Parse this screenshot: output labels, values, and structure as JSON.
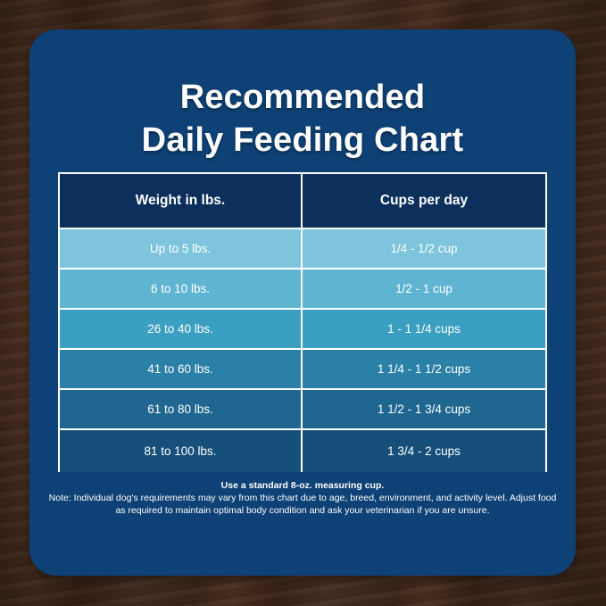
{
  "title": {
    "line1": "Recommended",
    "line2": "Daily Feeding Chart"
  },
  "table": {
    "headers": [
      "Weight in lbs.",
      "Cups per day"
    ],
    "rows": [
      {
        "weight": "Up to 5 lbs.",
        "cups": "1/4 - 1/2 cup"
      },
      {
        "weight": "6 to 10 lbs.",
        "cups": "1/2 - 1 cup"
      },
      {
        "weight": "26 to 40 lbs.",
        "cups": "1 - 1 1/4 cups"
      },
      {
        "weight": "41 to 60 lbs.",
        "cups": "1 1/4 - 1 1/2 cups"
      },
      {
        "weight": "61 to 80 lbs.",
        "cups": "1 1/2 - 1 3/4 cups"
      },
      {
        "weight": "81 to 100 lbs.",
        "cups": "1 3/4 - 2 cups"
      }
    ],
    "row_colors": [
      "#7ec4dc",
      "#5fb5d1",
      "#3a9fc0",
      "#2a80a6",
      "#1f6690",
      "#154f7a"
    ],
    "header_color": "#0c2f5b"
  },
  "notes": {
    "bold": "Use a standard 8-oz. measuring cup.",
    "text": "Note: Individual dog's requirements may vary from this chart due to age, breed, environment, and activity level. Adjust food as required to maintain optimal body condition and ask your veterinarian if you are unsure."
  }
}
